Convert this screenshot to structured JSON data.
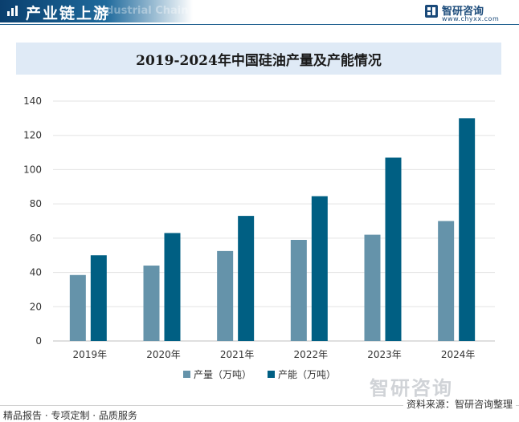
{
  "header": {
    "title": "产业链上游",
    "watermark": "Industrial Chain",
    "icon": "chart-bars-icon"
  },
  "brand": {
    "name": "智研咨询",
    "url": "www.chyxx.com",
    "logo_icon": "brand-logo-icon"
  },
  "footer": {
    "left": "精品报告 · 专项定制 · 品质服务",
    "source": "资料来源：智研咨询整理",
    "watermark": "智研咨询"
  },
  "colors": {
    "production": "#6593aa",
    "capacity": "#005f83",
    "header_bg": "#0a3f6e",
    "title_band": "#dfeaf6"
  },
  "chart_data": {
    "type": "bar",
    "title": "2019-2024年中国硅油产量及产能情况",
    "categories": [
      "2019年",
      "2020年",
      "2021年",
      "2022年",
      "2023年",
      "2024年"
    ],
    "series": [
      {
        "name": "产量（万吨）",
        "values": [
          38.5,
          44,
          52.5,
          59,
          62,
          70
        ]
      },
      {
        "name": "产能（万吨）",
        "values": [
          50,
          63,
          73,
          84.5,
          107,
          130
        ]
      }
    ],
    "ylim": [
      0,
      140
    ],
    "yticks": [
      0,
      20,
      40,
      60,
      80,
      100,
      120,
      140
    ],
    "grid": true,
    "legend_position": "bottom",
    "xlabel": "",
    "ylabel": ""
  }
}
